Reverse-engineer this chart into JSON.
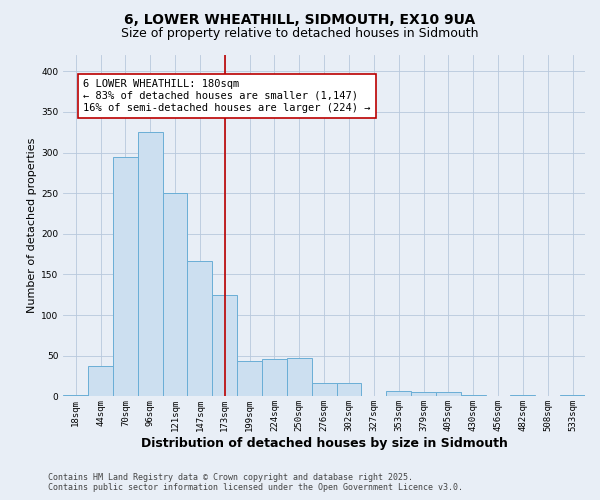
{
  "title_line1": "6, LOWER WHEATHILL, SIDMOUTH, EX10 9UA",
  "title_line2": "Size of property relative to detached houses in Sidmouth",
  "xlabel": "Distribution of detached houses by size in Sidmouth",
  "ylabel": "Number of detached properties",
  "categories": [
    "18sqm",
    "44sqm",
    "70sqm",
    "96sqm",
    "121sqm",
    "147sqm",
    "173sqm",
    "199sqm",
    "224sqm",
    "250sqm",
    "276sqm",
    "302sqm",
    "327sqm",
    "353sqm",
    "379sqm",
    "405sqm",
    "430sqm",
    "456sqm",
    "482sqm",
    "508sqm",
    "533sqm"
  ],
  "values": [
    2,
    38,
    295,
    325,
    250,
    167,
    125,
    43,
    46,
    47,
    16,
    17,
    0,
    7,
    6,
    6,
    2,
    0,
    2,
    0,
    2
  ],
  "bar_color": "#ccdff0",
  "bar_edge_color": "#6aaed6",
  "bar_linewidth": 0.7,
  "vline_x_index": 6,
  "vline_color": "#bb0000",
  "annotation_title": "6 LOWER WHEATHILL: 180sqm",
  "annotation_line1": "← 83% of detached houses are smaller (1,147)",
  "annotation_line2": "16% of semi-detached houses are larger (224) →",
  "annotation_box_facecolor": "#ffffff",
  "annotation_box_edgecolor": "#bb0000",
  "ylim": [
    0,
    420
  ],
  "yticks": [
    0,
    50,
    100,
    150,
    200,
    250,
    300,
    350,
    400
  ],
  "background_color": "#e8eef6",
  "plot_background_color": "#e8eef6",
  "footer_line1": "Contains HM Land Registry data © Crown copyright and database right 2025.",
  "footer_line2": "Contains public sector information licensed under the Open Government Licence v3.0.",
  "title_fontsize": 10,
  "subtitle_fontsize": 9,
  "tick_fontsize": 6.5,
  "ylabel_fontsize": 8,
  "xlabel_fontsize": 9,
  "annotation_fontsize": 7.5,
  "footer_fontsize": 6
}
